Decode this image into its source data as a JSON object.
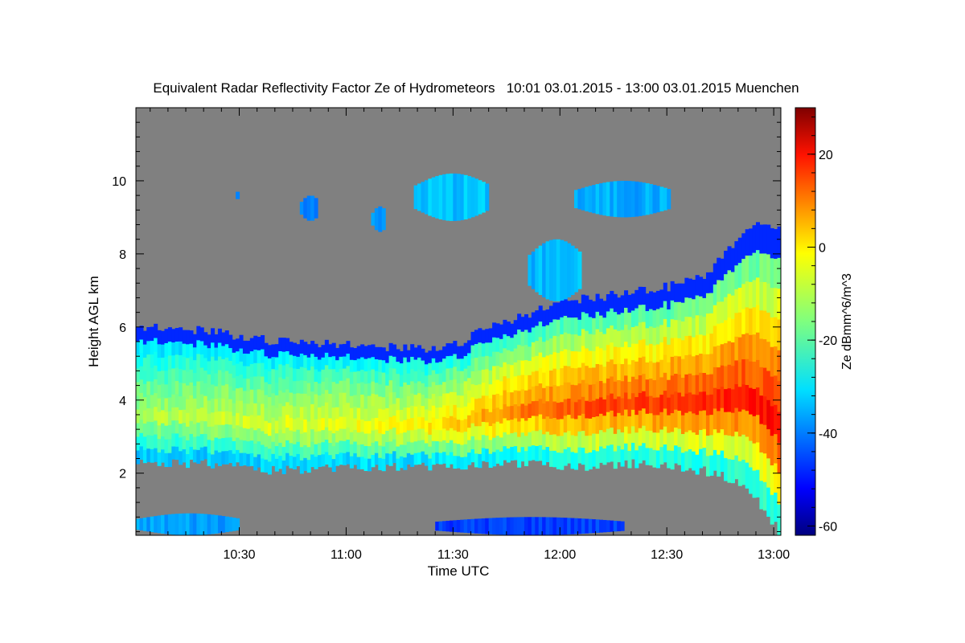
{
  "chart_data": {
    "type": "heatmap",
    "title": "Equivalent Radar Reflectivity Factor Ze of Hydrometeors   10:01 03.01.2015 - 13:00 03.01.2015 Muenchen",
    "xlabel": "Time UTC",
    "ylabel": "Height AGL km",
    "colorbar_label": "Ze dBmm^6/m^3",
    "x_ticks": [
      "10:30",
      "11:00",
      "11:30",
      "12:00",
      "12:30",
      "13:00"
    ],
    "x_range_minutes_utc": [
      601,
      782
    ],
    "y_ticks": [
      "2",
      "4",
      "6",
      "8",
      "10"
    ],
    "y_range_km": [
      0.3,
      12.0
    ],
    "colorbar_ticks": [
      "20",
      "0",
      "-20",
      "-40",
      "-60"
    ],
    "colorbar_range": [
      -62,
      30
    ],
    "colormap": "jet",
    "missing_color": "#808080",
    "cloud_layer": {
      "time_min_utc": [
        601,
        620,
        640,
        660,
        680,
        690,
        700,
        710,
        720,
        730,
        740,
        750,
        760,
        770,
        775,
        780,
        782
      ],
      "top_km": [
        6.0,
        5.9,
        5.6,
        5.5,
        5.4,
        5.5,
        6.0,
        6.3,
        6.7,
        6.8,
        7.0,
        7.1,
        7.4,
        8.5,
        8.8,
        8.8,
        8.5
      ],
      "base_km": [
        2.4,
        2.4,
        2.2,
        2.3,
        2.3,
        2.3,
        2.4,
        2.4,
        2.3,
        2.3,
        2.4,
        2.3,
        2.2,
        1.9,
        1.4,
        0.7,
        0.3
      ],
      "core_Ze_dBZ": [
        -12,
        -10,
        -8,
        -6,
        -4,
        0,
        4,
        8,
        10,
        12,
        13,
        14,
        15,
        16,
        16,
        18,
        20
      ]
    },
    "upper_cells": [
      {
        "t0": 629,
        "t1": 630,
        "bottom_km": 9.4,
        "top_km": 9.8,
        "Ze_dBZ": -38
      },
      {
        "t0": 647,
        "t1": 652,
        "bottom_km": 8.9,
        "top_km": 9.6,
        "Ze_dBZ": -38
      },
      {
        "t0": 667,
        "t1": 671,
        "bottom_km": 8.6,
        "top_km": 9.3,
        "Ze_dBZ": -38
      },
      {
        "t0": 679,
        "t1": 700,
        "bottom_km": 8.9,
        "top_km": 10.2,
        "Ze_dBZ": -33
      },
      {
        "t0": 724,
        "t1": 751,
        "bottom_km": 9.0,
        "top_km": 10.0,
        "Ze_dBZ": -35
      },
      {
        "t0": 711,
        "t1": 726,
        "bottom_km": 6.7,
        "top_km": 8.4,
        "Ze_dBZ": -34
      }
    ],
    "near_surface_echo": [
      {
        "t0": 601,
        "t1": 630,
        "bottom_km": 0.3,
        "top_km": 0.9,
        "Ze_dBZ": -36
      },
      {
        "t0": 685,
        "t1": 738,
        "bottom_km": 0.3,
        "top_km": 0.8,
        "Ze_dBZ": -45
      }
    ]
  }
}
